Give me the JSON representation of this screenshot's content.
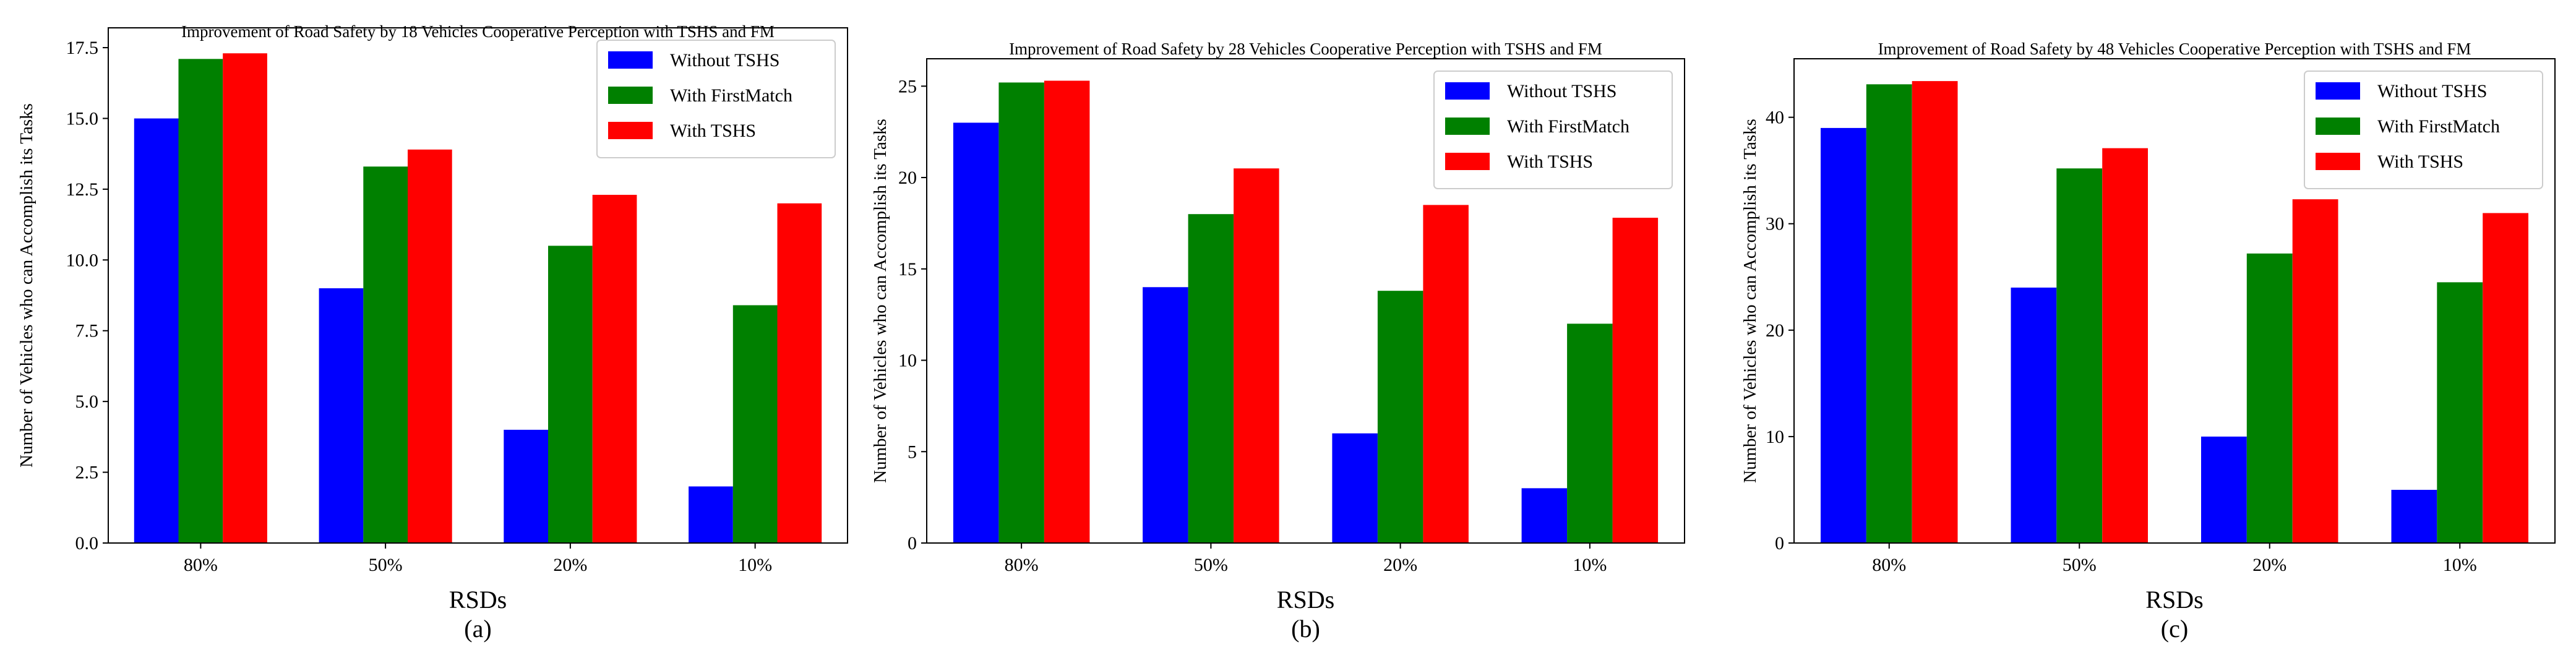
{
  "chart_data": [
    {
      "type": "bar",
      "title": "Improvement of Road Safety by 18 Vehicles Cooperative Perception with TSHS and FM",
      "xlabel": "RSDs",
      "ylabel": "Number of Vehicles who can Accomplish its Tasks",
      "caption": "(a)",
      "categories": [
        "80%",
        "50%",
        "20%",
        "10%"
      ],
      "ylim": [
        0,
        18.2
      ],
      "yticks": [
        0.0,
        2.5,
        5.0,
        7.5,
        10.0,
        12.5,
        15.0,
        17.5
      ],
      "ytick_labels": [
        "0.0",
        "2.5",
        "5.0",
        "7.5",
        "10.0",
        "12.5",
        "15.0",
        "17.5"
      ],
      "legend_position": "top-right",
      "series": [
        {
          "name": "Without TSHS",
          "color": "#0000ff",
          "values": [
            15,
            9,
            4,
            2
          ]
        },
        {
          "name": "With FirstMatch",
          "color": "#008000",
          "values": [
            17.1,
            13.3,
            10.5,
            8.4
          ]
        },
        {
          "name": "With TSHS",
          "color": "#ff0000",
          "values": [
            17.3,
            13.9,
            12.3,
            12.0
          ]
        }
      ]
    },
    {
      "type": "bar",
      "title": "Improvement of Road Safety by 28 Vehicles Cooperative Perception with TSHS and FM",
      "xlabel": "RSDs",
      "ylabel": "Number of Vehicles who can Accomplish its Tasks",
      "caption": "(b)",
      "categories": [
        "80%",
        "50%",
        "20%",
        "10%"
      ],
      "ylim": [
        0,
        26.5
      ],
      "yticks": [
        0,
        5,
        10,
        15,
        20,
        25
      ],
      "ytick_labels": [
        "0",
        "5",
        "10",
        "15",
        "20",
        "25"
      ],
      "legend_position": "top-right",
      "series": [
        {
          "name": "Without TSHS",
          "color": "#0000ff",
          "values": [
            23,
            14,
            6,
            3
          ]
        },
        {
          "name": "With FirstMatch",
          "color": "#008000",
          "values": [
            25.2,
            18.0,
            13.8,
            12.0
          ]
        },
        {
          "name": "With TSHS",
          "color": "#ff0000",
          "values": [
            25.3,
            20.5,
            18.5,
            17.8
          ]
        }
      ]
    },
    {
      "type": "bar",
      "title": "Improvement of Road Safety by 48 Vehicles Cooperative Perception with TSHS and FM",
      "xlabel": "RSDs",
      "ylabel": "Number of Vehicles who can Accomplish its Tasks",
      "caption": "(c)",
      "categories": [
        "80%",
        "50%",
        "20%",
        "10%"
      ],
      "ylim": [
        0,
        45.5
      ],
      "yticks": [
        0,
        10,
        20,
        30,
        40
      ],
      "ytick_labels": [
        "0",
        "10",
        "20",
        "30",
        "40"
      ],
      "legend_position": "top-right",
      "series": [
        {
          "name": "Without TSHS",
          "color": "#0000ff",
          "values": [
            39,
            24,
            10,
            5
          ]
        },
        {
          "name": "With FirstMatch",
          "color": "#008000",
          "values": [
            43.1,
            35.2,
            27.2,
            24.5
          ]
        },
        {
          "name": "With TSHS",
          "color": "#ff0000",
          "values": [
            43.4,
            37.1,
            32.3,
            31.0
          ]
        }
      ]
    }
  ]
}
